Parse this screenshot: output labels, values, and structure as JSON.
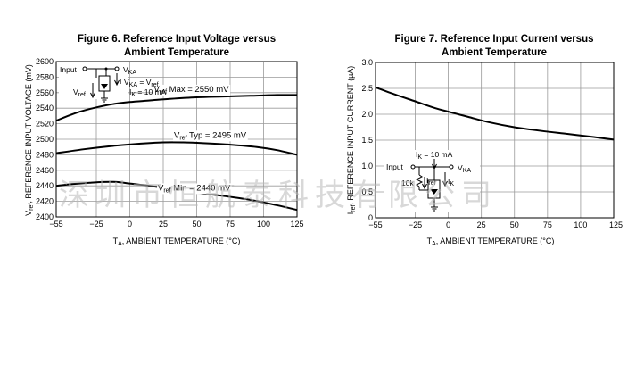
{
  "watermark": "深圳市恒航泰科技有限公司",
  "chart_data": [
    {
      "type": "line",
      "title_line1": "Figure 6. Reference Input Voltage versus",
      "title_line2": "Ambient Temperature",
      "xlabel_prefix": "T",
      "xlabel_sub": "A",
      "xlabel_rest": ", AMBIENT TEMPERATURE (°C)",
      "ylabel_prefix": "V",
      "ylabel_sub": "ref",
      "ylabel_rest": ", REFERENCE INPUT VOLTAGE (mV)",
      "xlim": [
        -55,
        125
      ],
      "ylim": [
        2400,
        2600
      ],
      "xticks": [
        -55,
        -25,
        0,
        25,
        50,
        75,
        100,
        125
      ],
      "xtick_labels": [
        "−55",
        "−25",
        "0",
        "25",
        "50",
        "75",
        "100",
        "125"
      ],
      "yticks": [
        2400,
        2420,
        2440,
        2460,
        2480,
        2500,
        2520,
        2540,
        2560,
        2580,
        2600
      ],
      "ytick_labels": [
        "2400",
        "2420",
        "2440",
        "2460",
        "2480",
        "2500",
        "2520",
        "2540",
        "2560",
        "2580",
        "2600"
      ],
      "grid": true,
      "series": [
        {
          "x": [
            -55,
            -40,
            -25,
            -10,
            0,
            15,
            30,
            50,
            70,
            90,
            110,
            125
          ],
          "y": [
            2524,
            2534,
            2541,
            2546,
            2548,
            2550,
            2552,
            2554,
            2555,
            2556,
            2557,
            2557
          ]
        },
        {
          "x": [
            -55,
            -35,
            -15,
            5,
            25,
            40,
            55,
            75,
            95,
            110,
            125
          ],
          "y": [
            2482,
            2487,
            2491,
            2494,
            2496,
            2496,
            2495,
            2493,
            2490,
            2486,
            2480
          ]
        },
        {
          "x": [
            -55,
            -45,
            -30,
            -20,
            -10,
            0,
            15,
            30,
            50,
            70,
            90,
            110,
            125
          ],
          "y": [
            2440,
            2442,
            2444,
            2445,
            2445,
            2443,
            2440,
            2436,
            2431,
            2427,
            2422,
            2415,
            2409
          ]
        }
      ],
      "annotations": [
        {
          "label_prefix": "V",
          "label_sub": "ref",
          "label_rest": " Max = 2550 mV",
          "x": 18,
          "y": 2561
        },
        {
          "label_prefix": "V",
          "label_sub": "ref",
          "label_rest": " Typ = 2495 mV",
          "x": 33,
          "y": 2502
        },
        {
          "label_prefix": "V",
          "label_sub": "ref",
          "label_rest": " Min = 2440 mV",
          "x": 21,
          "y": 2434
        }
      ],
      "inset": {
        "input": "Input",
        "vka": "V",
        "vka_sub": "KA",
        "ik_eq": "I",
        "eq_label": "V",
        "eq_sub": "KA",
        "eq_rest": " = V",
        "eq_sub2": "ref",
        "ik_label": "I",
        "ik_sub": "K",
        "ik_rest": " = 10 mA",
        "vref": "V",
        "vref_sub": "ref"
      }
    },
    {
      "type": "line",
      "title_line1": "Figure 7. Reference Input Current versus",
      "title_line2": "Ambient Temperature",
      "xlabel_prefix": "T",
      "xlabel_sub": "A",
      "xlabel_rest": ", AMBIENT TEMPERATURE (°C)",
      "ylabel_prefix": "I",
      "ylabel_sub": "ref",
      "ylabel_rest": ", REFERENCE INPUT CURRENT (µA)",
      "xlim": [
        -55,
        125
      ],
      "ylim": [
        0,
        3.0
      ],
      "xticks": [
        -55,
        -25,
        0,
        25,
        50,
        75,
        100,
        125
      ],
      "xtick_labels": [
        "−55",
        "−25",
        "0",
        "25",
        "50",
        "75",
        "100",
        "125"
      ],
      "yticks": [
        0,
        0.5,
        1.0,
        1.5,
        2.0,
        2.5,
        3.0
      ],
      "ytick_labels": [
        "0",
        "0.5",
        "1.0",
        "1.5",
        "2.0",
        "2.5",
        "3.0"
      ],
      "grid": true,
      "series": [
        {
          "x": [
            -55,
            -40,
            -25,
            -10,
            0,
            15,
            30,
            50,
            70,
            90,
            110,
            125
          ],
          "y": [
            2.52,
            2.38,
            2.25,
            2.12,
            2.05,
            1.95,
            1.85,
            1.75,
            1.68,
            1.62,
            1.56,
            1.51
          ]
        }
      ],
      "inset": {
        "ik_label": "I",
        "ik_sub": "K",
        "ik_rest": " = 10 mA",
        "input": "Input",
        "vka": "V",
        "vka_sub": "KA",
        "res": "10k",
        "iref": "I",
        "iref_sub": "ref",
        "ik2": "I",
        "ik2_sub": "K"
      }
    }
  ]
}
